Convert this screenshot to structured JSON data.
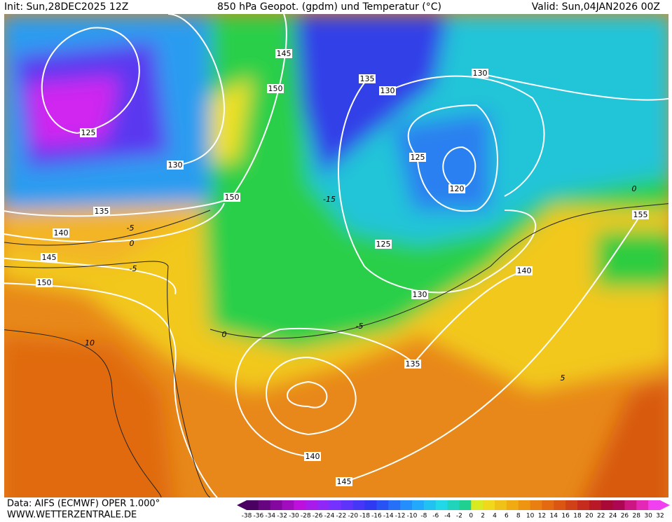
{
  "header": {
    "init": "Init: Sun,28DEC2025 12Z",
    "title": "850 hPa Geopot. (gpdm) und Temperatur (°C)",
    "valid": "Valid: Sun,04JAN2026 00Z"
  },
  "footer": {
    "source": "Data: AIFS (ECMWF) OPER 1.000°",
    "website": "WWW.WETTERZENTRALE.DE"
  },
  "legend": {
    "labels": [
      -38,
      -36,
      -34,
      -32,
      -30,
      -28,
      -26,
      -24,
      -22,
      -20,
      -18,
      -16,
      -14,
      -12,
      -10,
      -8,
      -6,
      -4,
      -2,
      0,
      2,
      4,
      6,
      8,
      10,
      12,
      14,
      16,
      18,
      20,
      22,
      24,
      26,
      28,
      30,
      32
    ]
  },
  "geopotential_labels": [
    "125",
    "130",
    "135",
    "140",
    "145",
    "150",
    "150",
    "145",
    "150",
    "135",
    "130",
    "130",
    "125",
    "120",
    "125",
    "130",
    "135",
    "140",
    "155",
    "140",
    "145"
  ],
  "temperature_labels": [
    "-5",
    "0",
    "-5",
    "10",
    "0",
    "5",
    "-15",
    "-5",
    "0"
  ]
}
